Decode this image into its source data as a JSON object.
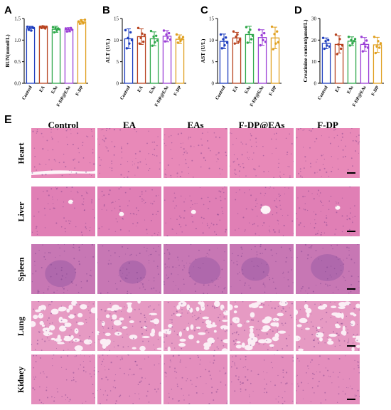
{
  "panel_E": {
    "label": "E",
    "columns": [
      "Control",
      "EA",
      "EAs",
      "F-DP@EAs",
      "F-DP"
    ],
    "rows": [
      "Heart",
      "Liver",
      "Spleen",
      "Lung",
      "Kidney"
    ]
  },
  "colors": {
    "Control": "#1f3fbf",
    "EA": "#b8431f",
    "EAs": "#2ea84a",
    "F-DP@EAs": "#9b3fd6",
    "F-DP": "#e0a020",
    "tissue_heart": "#e889b8",
    "tissue_liver": "#e07fb5",
    "tissue_spleen": "#c777b4",
    "tissue_lung": "#e69ac3",
    "tissue_kidney": "#e48ebd"
  },
  "chart_data": [
    {
      "panel": "A",
      "type": "bar",
      "categories": [
        "Control",
        "EA",
        "EAs",
        "F-DP@EAs",
        "F-DP"
      ],
      "ylabel": "BUN(mmol/L)",
      "ylim": [
        0,
        1.5
      ],
      "yticks": [
        "0.0",
        "0.5",
        "1.0",
        "1.5"
      ],
      "values": [
        1.27,
        1.3,
        1.25,
        1.24,
        1.42
      ],
      "errors": [
        0.05,
        0.03,
        0.07,
        0.05,
        0.05
      ],
      "points": [
        [
          1.31,
          1.24,
          1.29,
          1.22,
          1.3,
          1.28
        ],
        [
          1.31,
          1.28,
          1.32,
          1.3,
          1.27,
          1.31
        ],
        [
          1.3,
          1.18,
          1.28,
          1.22,
          1.27,
          1.25
        ],
        [
          1.27,
          1.2,
          1.26,
          1.22,
          1.28,
          1.24
        ],
        [
          1.43,
          1.38,
          1.46,
          1.42,
          1.4,
          1.47
        ]
      ]
    },
    {
      "panel": "B",
      "type": "bar",
      "categories": [
        "Control",
        "EA",
        "EAs",
        "F-DP@EAs",
        "F-DP"
      ],
      "ylabel": "ALT (U/L)",
      "ylim": [
        0,
        15
      ],
      "yticks": [
        "0",
        "5",
        "10",
        "15"
      ],
      "values": [
        10.3,
        10.8,
        10.3,
        10.9,
        10.2
      ],
      "errors": [
        2.3,
        1.8,
        1.6,
        1.3,
        1.0
      ],
      "points": [
        [
          12.3,
          8.1,
          10.5,
          9.2,
          11.8,
          10.0
        ],
        [
          12.8,
          9.2,
          10.5,
          11.5,
          9.6,
          11.2
        ],
        [
          12.1,
          8.7,
          10.8,
          9.5,
          11.0,
          9.9
        ],
        [
          12.2,
          9.7,
          11.3,
          10.5,
          11.6,
          10.1
        ],
        [
          11.3,
          9.4,
          10.6,
          9.8,
          10.2,
          10.7
        ]
      ]
    },
    {
      "panel": "C",
      "type": "bar",
      "categories": [
        "Control",
        "EA",
        "EAs",
        "F-DP@EAs",
        "F-DP"
      ],
      "ylabel": "AST (U/L)",
      "ylim": [
        0,
        15
      ],
      "yticks": [
        "0",
        "5",
        "10",
        "15"
      ],
      "values": [
        9.7,
        10.5,
        11.3,
        10.6,
        10.5
      ],
      "errors": [
        1.7,
        1.3,
        1.9,
        1.8,
        2.5
      ],
      "points": [
        [
          11.3,
          8.1,
          10.2,
          8.8,
          10.6,
          9.4
        ],
        [
          12.0,
          9.2,
          10.8,
          11.3,
          9.6,
          10.1
        ],
        [
          13.0,
          9.4,
          11.8,
          12.4,
          10.2,
          11.0
        ],
        [
          12.4,
          8.8,
          11.1,
          10.0,
          11.6,
          9.6
        ],
        [
          13.1,
          7.9,
          11.4,
          9.2,
          12.0,
          9.5
        ]
      ]
    },
    {
      "panel": "D",
      "type": "bar",
      "categories": [
        "Control",
        "EA",
        "EAs",
        "F-DP@EAs",
        "F-DP"
      ],
      "ylabel": "Creatinine content(μmol/L)",
      "ylim": [
        0,
        30
      ],
      "yticks": [
        "0",
        "10",
        "20",
        "30"
      ],
      "values": [
        18.5,
        18.0,
        19.5,
        18.0,
        17.8
      ],
      "errors": [
        2.5,
        4.0,
        2.0,
        3.2,
        3.5
      ],
      "points": [
        [
          21.0,
          16.0,
          19.5,
          17.5,
          20.0,
          17.0
        ],
        [
          22.5,
          13.5,
          18.0,
          20.5,
          16.0,
          17.5
        ],
        [
          21.5,
          17.5,
          20.0,
          18.5,
          19.5,
          20.5
        ],
        [
          21.5,
          14.8,
          18.5,
          17.0,
          19.8,
          16.5
        ],
        [
          21.5,
          14.0,
          17.0,
          19.5,
          16.5,
          18.5
        ]
      ]
    }
  ]
}
